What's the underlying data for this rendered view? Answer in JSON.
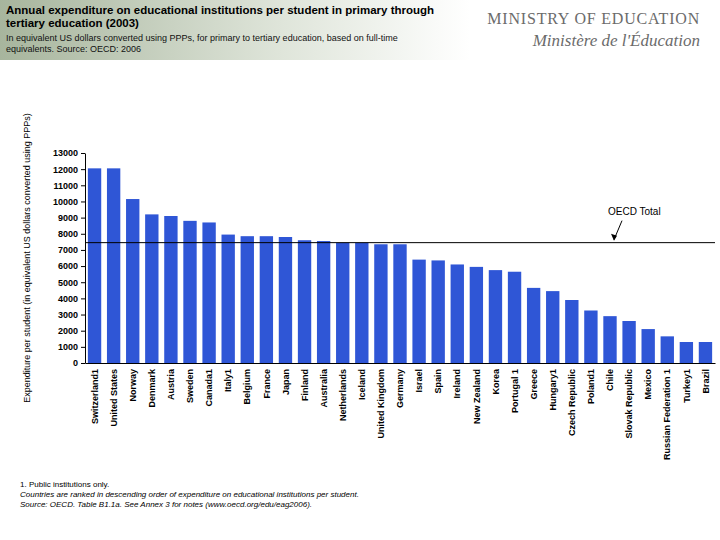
{
  "logo": {
    "line1": "MINISTRY OF EDUCATION",
    "line2": "Ministère de l'Éducation"
  },
  "chart_data": {
    "type": "bar",
    "title": "Annual expenditure on educational institutions per student in primary through tertiary education (2003)",
    "subtitle": "In equivalent US dollars converted using PPPs, for primary to tertiary education, based on full-time equivalents. Source: OECD: 2006",
    "y_label": "Expenditure per student (in equivalent US dollars converted using PPPs)",
    "categories": [
      "Switzerland1",
      "United States",
      "Norway",
      "Denmark",
      "Austria",
      "Sweden",
      "Canada1",
      "Italy1",
      "Belgium",
      "France",
      "Japan",
      "Finland",
      "Australia",
      "Netherlands",
      "Iceland",
      "United Kingdom",
      "Germany",
      "Israel",
      "Spain",
      "Ireland",
      "New Zealand",
      "Korea",
      "Portugal 1",
      "Greece",
      "Hungary1",
      "Czech Republic",
      "Poland1",
      "Chile",
      "Slovak Republic",
      "Mexico",
      "Russian Federation 1",
      "Turkey1",
      "Brazil"
    ],
    "values": [
      12050,
      12050,
      10150,
      9200,
      9100,
      8800,
      8700,
      7950,
      7850,
      7850,
      7800,
      7600,
      7550,
      7450,
      7450,
      7350,
      7350,
      6400,
      6350,
      6100,
      5950,
      5750,
      5650,
      4650,
      4450,
      3900,
      3250,
      2900,
      2600,
      2100,
      1650,
      1300,
      1300
    ],
    "color": "#2f56d6",
    "ylim": [
      0,
      13000
    ],
    "yticks": [
      0,
      1000,
      2000,
      3000,
      4000,
      5000,
      6000,
      7000,
      8000,
      9000,
      10000,
      11000,
      12000,
      13000
    ],
    "grid": false,
    "reference_line": {
      "label": "OECD Total",
      "value": 7450
    },
    "notes": [
      "1. Public institutions only.",
      "Countries are ranked in descending order of expenditure on educational institutions per student.",
      "Source: OECD. Table B1.1a. See Annex 3 for notes (www.oecd.org/edu/eag2006)."
    ]
  }
}
